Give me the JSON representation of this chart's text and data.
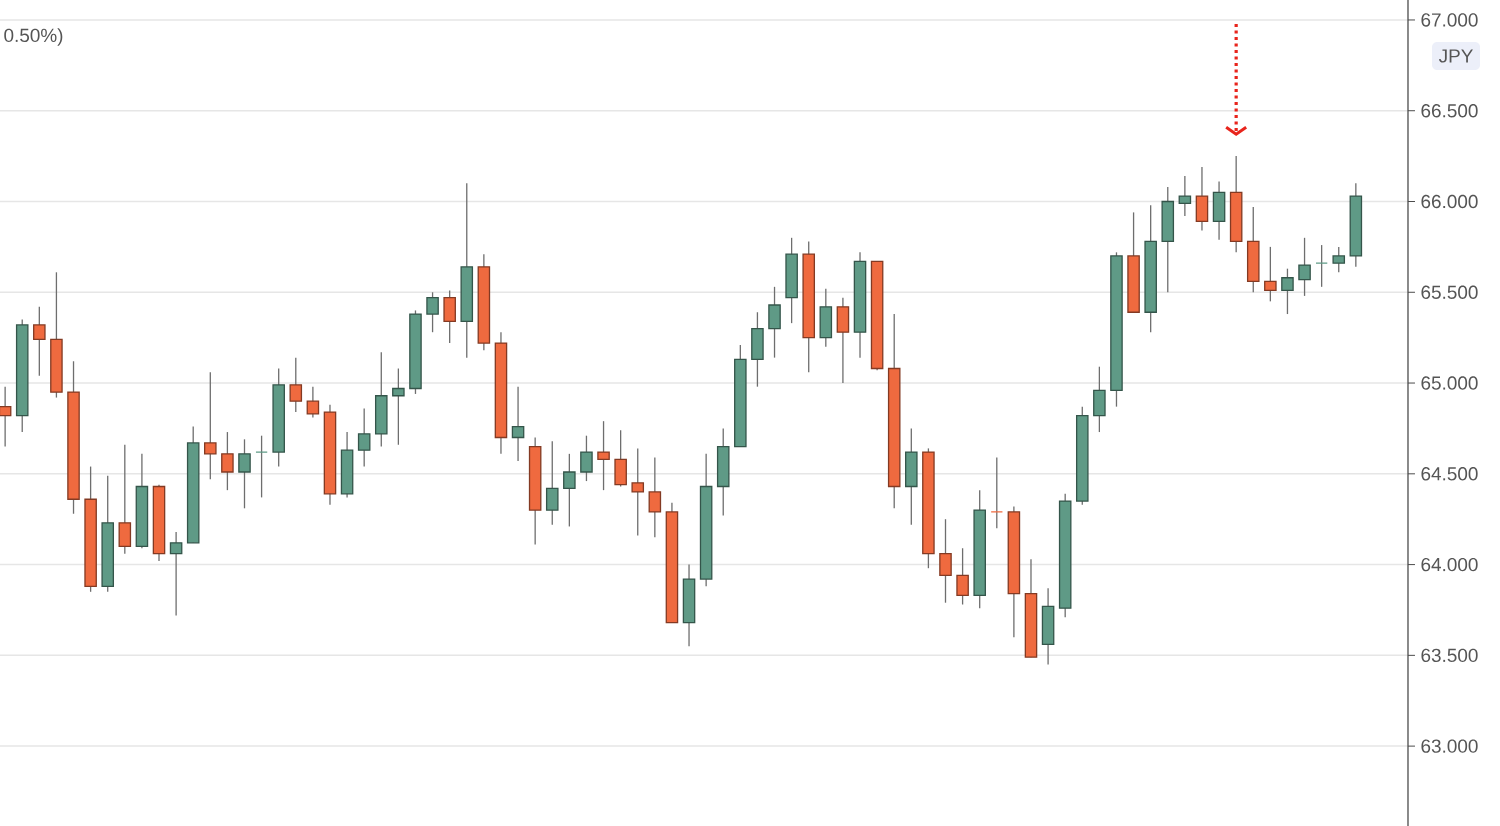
{
  "chart_data": {
    "type": "candlestick",
    "categories": [
      null,
      null,
      null,
      null,
      null,
      null,
      null,
      null,
      null,
      null,
      null,
      null,
      null,
      null,
      null,
      null,
      null,
      null,
      null,
      null,
      null,
      null,
      null,
      null,
      null,
      null,
      null,
      null,
      null,
      null,
      null,
      null,
      null,
      null,
      null,
      null,
      null,
      null,
      null,
      null,
      null,
      null,
      null,
      null,
      null,
      null,
      null,
      null,
      null,
      null,
      null,
      null,
      null,
      null,
      null,
      null,
      null,
      null,
      null,
      null,
      null,
      null,
      null,
      null,
      null,
      null,
      null,
      null,
      null,
      null,
      null,
      null,
      null,
      null,
      null,
      null,
      null,
      null,
      null,
      null
    ],
    "ohlc": [
      [
        64.87,
        64.98,
        64.65,
        64.82
      ],
      [
        64.82,
        65.35,
        64.73,
        65.32
      ],
      [
        65.32,
        65.42,
        65.04,
        65.24
      ],
      [
        65.24,
        65.61,
        64.92,
        64.95
      ],
      [
        64.95,
        65.12,
        64.28,
        64.36
      ],
      [
        64.36,
        64.54,
        63.85,
        63.88
      ],
      [
        63.88,
        64.49,
        63.85,
        64.23
      ],
      [
        64.23,
        64.66,
        64.06,
        64.1
      ],
      [
        64.1,
        64.61,
        64.09,
        64.43
      ],
      [
        64.43,
        64.44,
        64.02,
        64.06
      ],
      [
        64.06,
        64.18,
        63.72,
        64.12
      ],
      [
        64.12,
        64.76,
        64.12,
        64.67
      ],
      [
        64.67,
        65.06,
        64.47,
        64.61
      ],
      [
        64.61,
        64.73,
        64.41,
        64.51
      ],
      [
        64.51,
        64.69,
        64.31,
        64.61
      ],
      [
        64.62,
        64.71,
        64.37,
        64.62
      ],
      [
        64.62,
        65.08,
        64.54,
        64.99
      ],
      [
        64.99,
        65.14,
        64.84,
        64.9
      ],
      [
        64.9,
        64.98,
        64.81,
        64.83
      ],
      [
        64.84,
        64.88,
        64.33,
        64.39
      ],
      [
        64.39,
        64.73,
        64.37,
        64.63
      ],
      [
        64.63,
        64.86,
        64.54,
        64.72
      ],
      [
        64.72,
        65.17,
        64.65,
        64.93
      ],
      [
        64.93,
        65.08,
        64.66,
        64.97
      ],
      [
        64.97,
        65.4,
        64.94,
        65.38
      ],
      [
        65.38,
        65.5,
        65.28,
        65.47
      ],
      [
        65.47,
        65.51,
        65.22,
        65.34
      ],
      [
        65.34,
        66.1,
        65.14,
        65.64
      ],
      [
        65.64,
        65.71,
        65.18,
        65.22
      ],
      [
        65.22,
        65.28,
        64.61,
        64.7
      ],
      [
        64.7,
        64.98,
        64.57,
        64.76
      ],
      [
        64.65,
        64.7,
        64.11,
        64.3
      ],
      [
        64.3,
        64.68,
        64.22,
        64.42
      ],
      [
        64.42,
        64.61,
        64.21,
        64.51
      ],
      [
        64.51,
        64.71,
        64.46,
        64.62
      ],
      [
        64.62,
        64.79,
        64.41,
        64.58
      ],
      [
        64.58,
        64.74,
        64.43,
        64.44
      ],
      [
        64.45,
        64.64,
        64.16,
        64.4
      ],
      [
        64.4,
        64.59,
        64.15,
        64.29
      ],
      [
        64.29,
        64.34,
        63.68,
        63.68
      ],
      [
        63.68,
        64.0,
        63.55,
        63.92
      ],
      [
        63.92,
        64.61,
        63.88,
        64.43
      ],
      [
        64.43,
        64.75,
        64.27,
        64.65
      ],
      [
        64.65,
        65.21,
        64.65,
        65.13
      ],
      [
        65.13,
        65.39,
        64.98,
        65.3
      ],
      [
        65.3,
        65.53,
        65.14,
        65.43
      ],
      [
        65.47,
        65.8,
        65.33,
        65.71
      ],
      [
        65.71,
        65.78,
        65.06,
        65.25
      ],
      [
        65.25,
        65.52,
        65.2,
        65.42
      ],
      [
        65.42,
        65.47,
        65.0,
        65.28
      ],
      [
        65.28,
        65.72,
        65.14,
        65.67
      ],
      [
        65.67,
        65.67,
        65.07,
        65.08
      ],
      [
        65.08,
        65.38,
        64.31,
        64.43
      ],
      [
        64.43,
        64.75,
        64.22,
        64.62
      ],
      [
        64.62,
        64.64,
        63.98,
        64.06
      ],
      [
        64.06,
        64.25,
        63.79,
        63.94
      ],
      [
        63.94,
        64.09,
        63.78,
        63.83
      ],
      [
        63.83,
        64.41,
        63.76,
        64.3
      ],
      [
        64.29,
        64.59,
        64.2,
        64.29
      ],
      [
        64.29,
        64.32,
        63.6,
        63.84
      ],
      [
        63.84,
        64.03,
        63.49,
        63.49
      ],
      [
        63.56,
        63.87,
        63.45,
        63.77
      ],
      [
        63.76,
        64.39,
        63.71,
        64.35
      ],
      [
        64.35,
        64.87,
        64.33,
        64.82
      ],
      [
        64.82,
        65.09,
        64.73,
        64.96
      ],
      [
        64.96,
        65.72,
        64.87,
        65.7
      ],
      [
        65.7,
        65.94,
        65.39,
        65.39
      ],
      [
        65.39,
        65.98,
        65.28,
        65.78
      ],
      [
        65.78,
        66.08,
        65.5,
        66.0
      ],
      [
        65.99,
        66.14,
        65.92,
        66.03
      ],
      [
        66.03,
        66.19,
        65.84,
        65.89
      ],
      [
        65.89,
        66.11,
        65.79,
        66.05
      ],
      [
        66.05,
        66.25,
        65.72,
        65.78
      ],
      [
        65.78,
        65.97,
        65.5,
        65.56
      ],
      [
        65.56,
        65.75,
        65.45,
        65.51
      ],
      [
        65.51,
        65.63,
        65.38,
        65.58
      ],
      [
        65.57,
        65.8,
        65.48,
        65.65
      ],
      [
        65.66,
        65.76,
        65.53,
        65.66
      ],
      [
        65.66,
        65.75,
        65.61,
        65.7
      ],
      [
        65.7,
        66.1,
        65.64,
        66.03
      ]
    ],
    "colors": [
      "#ef6a3f",
      "#5f9a86",
      "#ef6a3f",
      "#ef6a3f",
      "#ef6a3f",
      "#ef6a3f",
      "#5f9a86",
      "#ef6a3f",
      "#5f9a86",
      "#ef6a3f",
      "#5f9a86",
      "#5f9a86",
      "#ef6a3f",
      "#ef6a3f",
      "#5f9a86",
      "#5f9a86",
      "#5f9a86",
      "#ef6a3f",
      "#ef6a3f",
      "#ef6a3f",
      "#5f9a86",
      "#5f9a86",
      "#5f9a86",
      "#5f9a86",
      "#5f9a86",
      "#5f9a86",
      "#ef6a3f",
      "#5f9a86",
      "#ef6a3f",
      "#ef6a3f",
      "#5f9a86",
      "#ef6a3f",
      "#5f9a86",
      "#5f9a86",
      "#5f9a86",
      "#ef6a3f",
      "#ef6a3f",
      "#ef6a3f",
      "#ef6a3f",
      "#ef6a3f",
      "#5f9a86",
      "#5f9a86",
      "#5f9a86",
      "#5f9a86",
      "#5f9a86",
      "#5f9a86",
      "#5f9a86",
      "#ef6a3f",
      "#5f9a86",
      "#ef6a3f",
      "#5f9a86",
      "#ef6a3f",
      "#ef6a3f",
      "#5f9a86",
      "#ef6a3f",
      "#ef6a3f",
      "#ef6a3f",
      "#5f9a86",
      "#ef6a3f",
      "#ef6a3f",
      "#ef6a3f",
      "#5f9a86",
      "#5f9a86",
      "#5f9a86",
      "#5f9a86",
      "#5f9a86",
      "#ef6a3f",
      "#5f9a86",
      "#5f9a86",
      "#5f9a86",
      "#ef6a3f",
      "#5f9a86",
      "#ef6a3f",
      "#ef6a3f",
      "#ef6a3f",
      "#5f9a86",
      "#5f9a86",
      "#5f9a86",
      "#5f9a86",
      "#5f9a86"
    ],
    "ylim": [
      62.56,
      67.11
    ],
    "yticks": [
      {
        "value": 63,
        "label": "63.000"
      },
      {
        "value": 63.5,
        "label": "63.500"
      },
      {
        "value": 64,
        "label": "64.000"
      },
      {
        "value": 64.5,
        "label": "64.500"
      },
      {
        "value": 65,
        "label": "65.000"
      },
      {
        "value": 65.5,
        "label": "65.500"
      },
      {
        "value": 66,
        "label": "66.000"
      },
      {
        "value": 66.5,
        "label": "66.500"
      },
      {
        "value": 67,
        "label": "67.000"
      }
    ],
    "tick_labels": "y",
    "grid": "y",
    "annotations": [
      "0.50%)",
      "JPY"
    ]
  }
}
